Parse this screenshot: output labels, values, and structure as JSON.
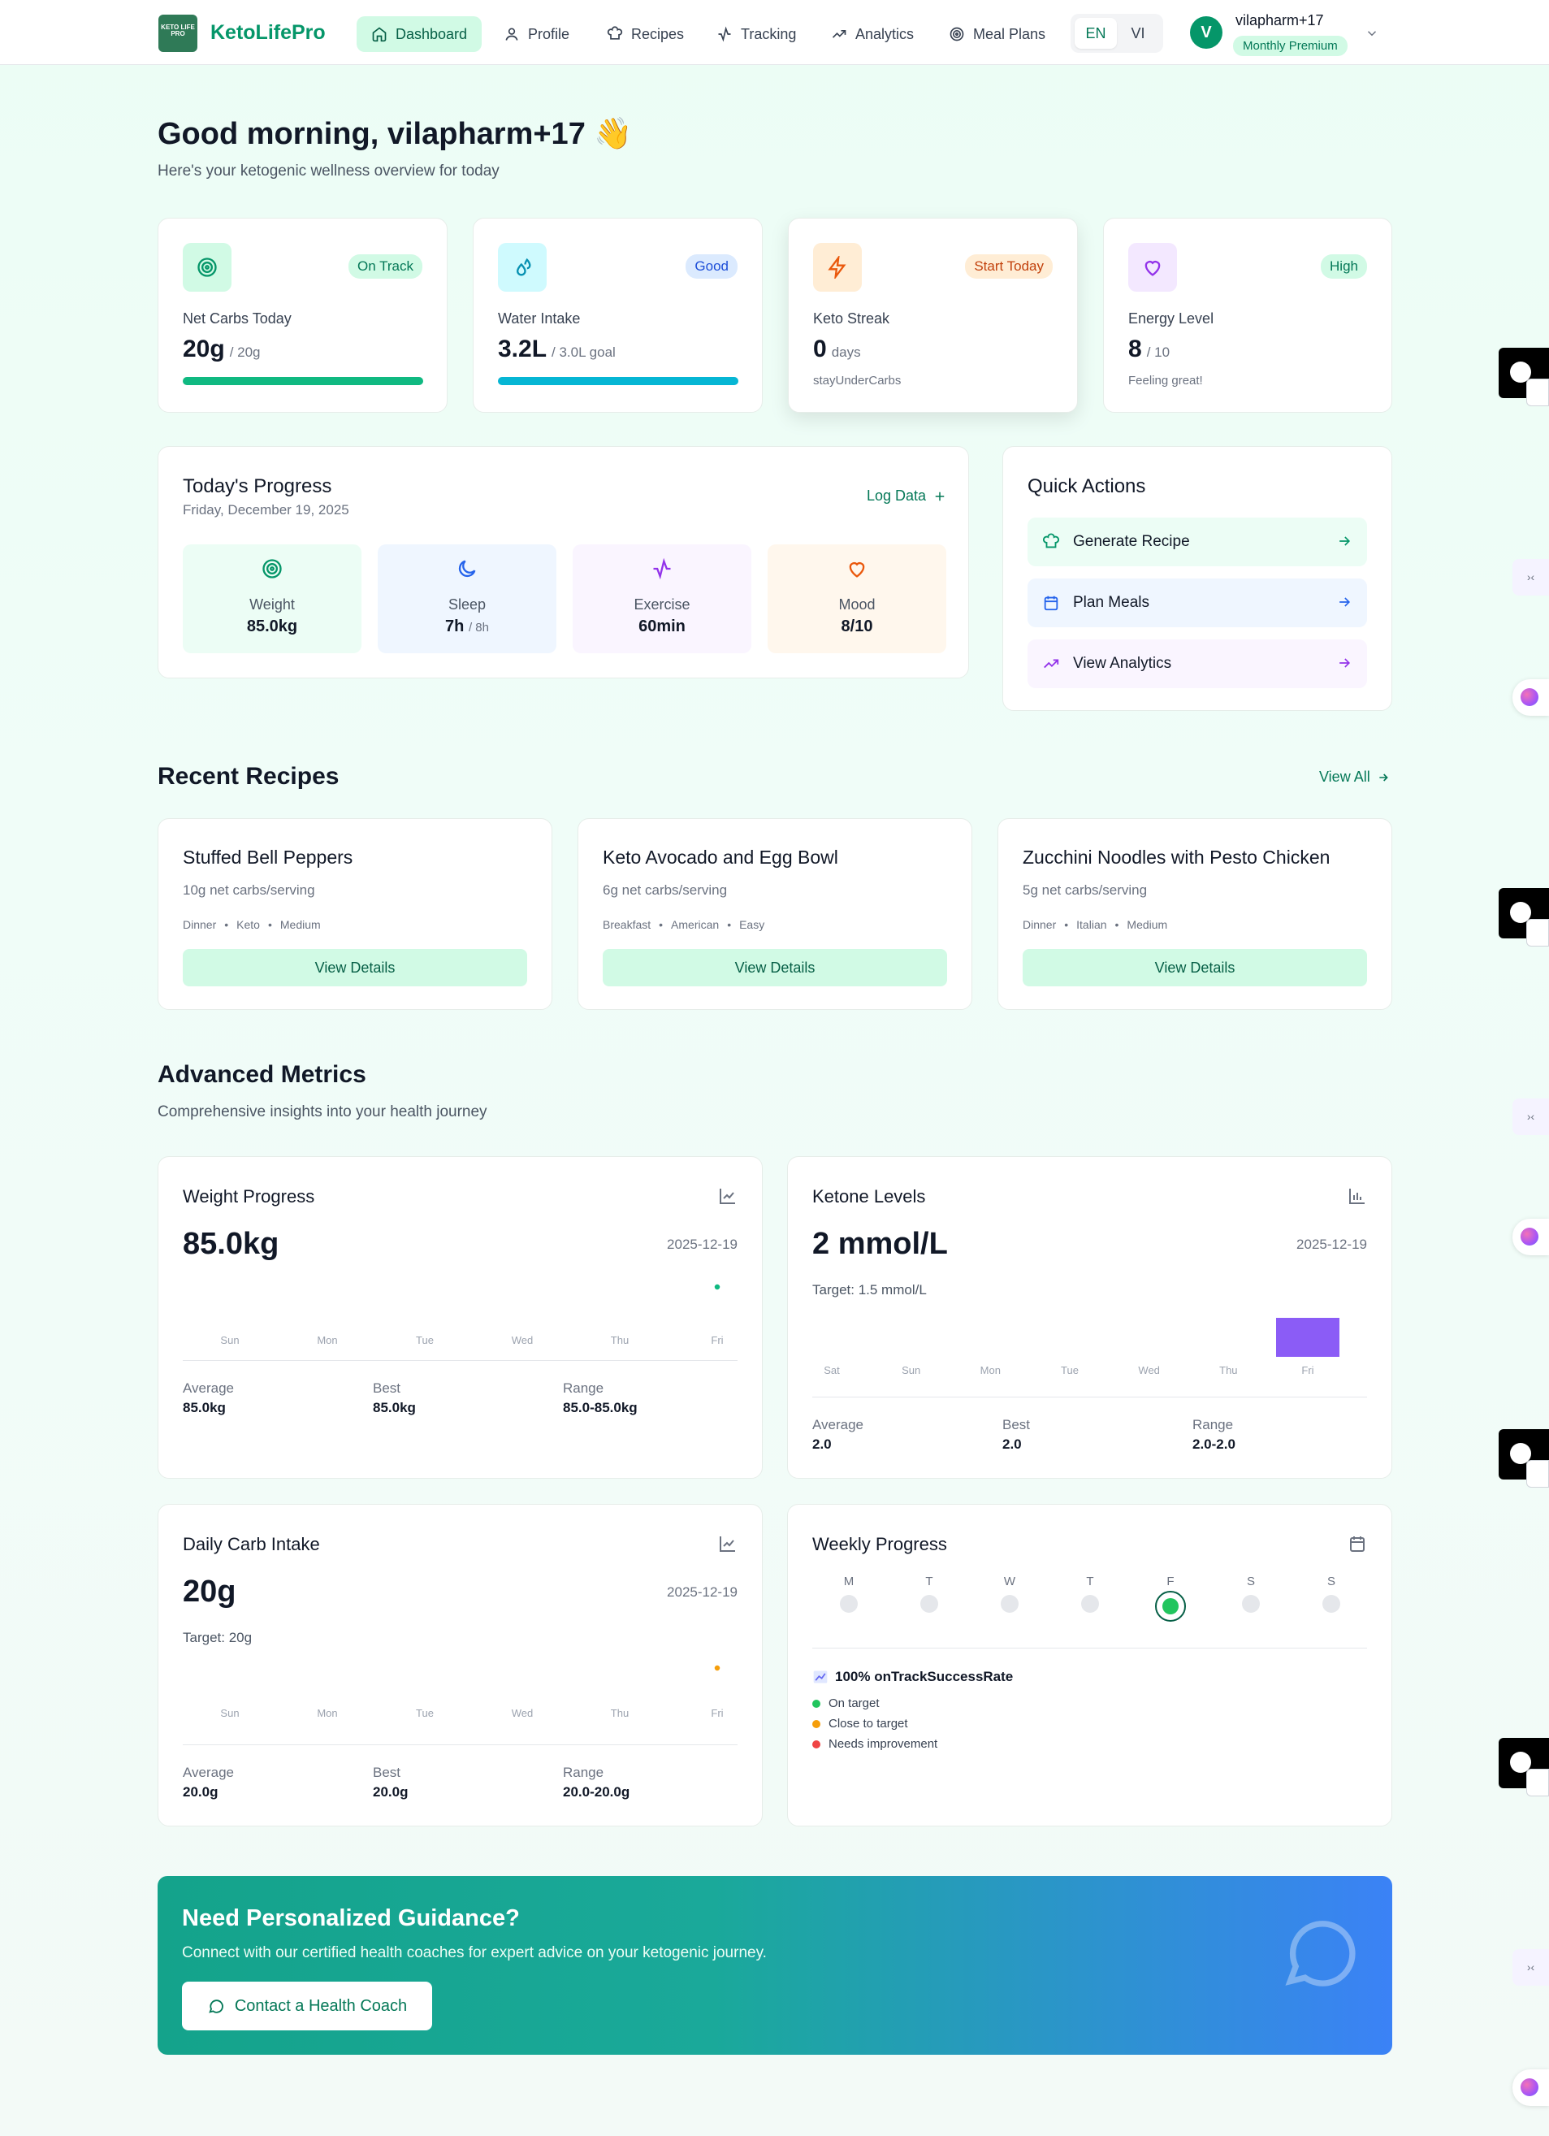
{
  "nav": {
    "logo_mark": "KETO LIFE PRO",
    "brand": "KetoLifePro",
    "items": [
      {
        "label": "Dashboard",
        "icon": "home-icon",
        "active": true
      },
      {
        "label": "Profile",
        "icon": "user-icon",
        "active": false
      },
      {
        "label": "Recipes",
        "icon": "chef-hat-icon",
        "active": false
      },
      {
        "label": "Tracking",
        "icon": "activity-icon",
        "active": false
      },
      {
        "label": "Analytics",
        "icon": "trending-up-icon",
        "active": false
      },
      {
        "label": "Meal Plans",
        "icon": "target-icon",
        "active": false
      }
    ],
    "lang": {
      "active": "EN",
      "other": "VI"
    },
    "user": {
      "initial": "V",
      "name": "vilapharm+17",
      "plan": "Monthly Premium"
    }
  },
  "greeting": {
    "title": "Good morning, vilapharm+17",
    "emoji": "👋",
    "subtitle": "Here's your ketogenic wellness overview for today"
  },
  "stats": [
    {
      "label": "Net Carbs Today",
      "value": "20g",
      "unit": "/ 20g",
      "badge": "On Track",
      "icon": "target-icon",
      "progress": 1.0,
      "note": ""
    },
    {
      "label": "Water Intake",
      "value": "3.2L",
      "unit": "/ 3.0L goal",
      "badge": "Good",
      "icon": "droplets-icon",
      "progress": 1.0,
      "note": ""
    },
    {
      "label": "Keto Streak",
      "value": "0",
      "unit": "days",
      "badge": "Start Today",
      "icon": "zap-icon",
      "note": "stayUnderCarbs"
    },
    {
      "label": "Energy Level",
      "value": "8",
      "unit": "/ 10",
      "badge": "High",
      "icon": "heart-icon",
      "note": "Feeling great!"
    }
  ],
  "progress": {
    "title": "Today's Progress",
    "date": "Friday, December 19, 2025",
    "log_label": "Log Data",
    "tiles": [
      {
        "label": "Weight",
        "value": "85.0kg",
        "suffix": ""
      },
      {
        "label": "Sleep",
        "value": "7h",
        "suffix": "/ 8h"
      },
      {
        "label": "Exercise",
        "value": "60min",
        "suffix": ""
      },
      {
        "label": "Mood",
        "value": "8/10",
        "suffix": ""
      }
    ]
  },
  "quick_actions": {
    "title": "Quick Actions",
    "items": [
      {
        "label": "Generate Recipe",
        "icon": "chef-hat-icon"
      },
      {
        "label": "Plan Meals",
        "icon": "calendar-icon"
      },
      {
        "label": "View Analytics",
        "icon": "trending-up-icon"
      }
    ]
  },
  "recipes": {
    "title": "Recent Recipes",
    "view_all": "View All",
    "items": [
      {
        "title": "Stuffed Bell Peppers",
        "carbs": "10g net carbs/serving",
        "tags": [
          "Dinner",
          "Keto",
          "Medium"
        ],
        "button": "View Details"
      },
      {
        "title": "Keto Avocado and Egg Bowl",
        "carbs": "6g net carbs/serving",
        "tags": [
          "Breakfast",
          "American",
          "Easy"
        ],
        "button": "View Details"
      },
      {
        "title": "Zucchini Noodles with Pesto Chicken",
        "carbs": "5g net carbs/serving",
        "tags": [
          "Dinner",
          "Italian",
          "Medium"
        ],
        "button": "View Details"
      }
    ]
  },
  "metrics": {
    "title": "Advanced Metrics",
    "subtitle": "Comprehensive insights into your health journey",
    "weight": {
      "title": "Weight Progress",
      "value": "85.0kg",
      "date": "2025-12-19",
      "days": [
        "Sun",
        "Mon",
        "Tue",
        "Wed",
        "Thu",
        "Fri"
      ],
      "stats": [
        {
          "k": "Average",
          "v": "85.0kg"
        },
        {
          "k": "Best",
          "v": "85.0kg"
        },
        {
          "k": "Range",
          "v": "85.0-85.0kg"
        }
      ]
    },
    "ketone": {
      "title": "Ketone Levels",
      "value": "2 mmol/L",
      "date": "2025-12-19",
      "target": "Target: 1.5 mmol/L",
      "days": [
        "Sat",
        "Sun",
        "Mon",
        "Tue",
        "Wed",
        "Thu",
        "Fri"
      ],
      "stats": [
        {
          "k": "Average",
          "v": "2.0"
        },
        {
          "k": "Best",
          "v": "2.0"
        },
        {
          "k": "Range",
          "v": "2.0-2.0"
        }
      ]
    },
    "carb": {
      "title": "Daily Carb Intake",
      "value": "20g",
      "date": "2025-12-19",
      "target": "Target: 20g",
      "days": [
        "Sun",
        "Mon",
        "Tue",
        "Wed",
        "Thu",
        "Fri"
      ],
      "stats": [
        {
          "k": "Average",
          "v": "20.0g"
        },
        {
          "k": "Best",
          "v": "20.0g"
        },
        {
          "k": "Range",
          "v": "20.0-20.0g"
        }
      ]
    },
    "weekly": {
      "title": "Weekly Progress",
      "letters": [
        "M",
        "T",
        "W",
        "T",
        "F",
        "S",
        "S"
      ],
      "success": "100% onTrackSuccessRate",
      "legend": [
        {
          "label": "On target",
          "color": "#22c55e"
        },
        {
          "label": "Close to target",
          "color": "#f59e0b"
        },
        {
          "label": "Needs improvement",
          "color": "#ef4444"
        }
      ]
    }
  },
  "banner": {
    "title": "Need Personalized Guidance?",
    "subtitle": "Connect with our certified health coaches for expert advice on your ketogenic journey.",
    "button": "Contact a Health Coach"
  },
  "chart_data": [
    {
      "type": "line",
      "title": "Weight Progress",
      "categories": [
        "Sun",
        "Mon",
        "Tue",
        "Wed",
        "Thu",
        "Fri"
      ],
      "series": [
        {
          "values": [
            null,
            null,
            null,
            null,
            null,
            85.0
          ]
        }
      ]
    },
    {
      "type": "bar",
      "title": "Ketone Levels",
      "categories": [
        "Sat",
        "Sun",
        "Mon",
        "Tue",
        "Wed",
        "Thu",
        "Fri"
      ],
      "series": [
        {
          "values": [
            null,
            null,
            null,
            null,
            null,
            null,
            2.0
          ]
        }
      ]
    },
    {
      "type": "line",
      "title": "Daily Carb Intake",
      "categories": [
        "Sun",
        "Mon",
        "Tue",
        "Wed",
        "Thu",
        "Fri"
      ],
      "series": [
        {
          "values": [
            null,
            null,
            null,
            null,
            null,
            20.0
          ]
        }
      ]
    }
  ],
  "colors": {
    "accent": "#059669",
    "ketone_bar": "#8b5cf6",
    "weight_dot": "#10b981",
    "carb_dot": "#f59e0b"
  }
}
